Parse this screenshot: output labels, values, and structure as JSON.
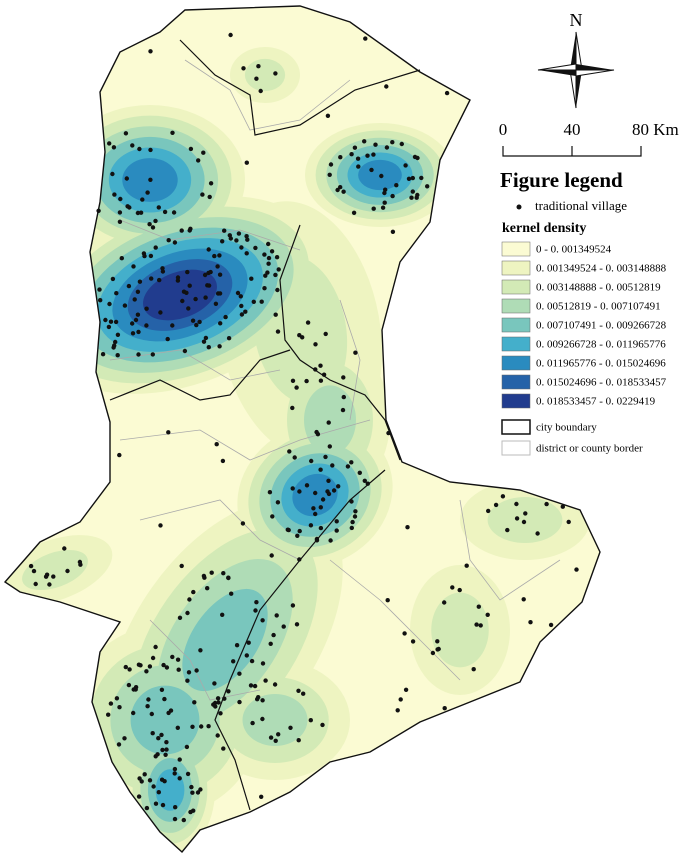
{
  "north": "N",
  "scale_bar": {
    "labels": [
      "0",
      "40",
      "80 Km"
    ]
  },
  "legend": {
    "title": "Figure legend",
    "village": "traditional village",
    "density_title": "kernel density",
    "classes": [
      {
        "label": "0 - 0. 001349524",
        "color": "#fbfbd3"
      },
      {
        "label": "0. 001349524 - 0. 003148888",
        "color": "#eef4c1"
      },
      {
        "label": "0. 003148888 - 0. 00512819",
        "color": "#d3eab6"
      },
      {
        "label": "0. 00512819 - 0. 007107491",
        "color": "#afdcb6"
      },
      {
        "label": "0. 007107491 - 0. 009266728",
        "color": "#79c6bd"
      },
      {
        "label": "0. 009266728 - 0. 011965776",
        "color": "#44afcb"
      },
      {
        "label": "0. 011965776 - 0. 015024696",
        "color": "#2a8bbf"
      },
      {
        "label": "0. 015024696 - 0. 018533457",
        "color": "#2562a8"
      },
      {
        "label": "0. 018533457 - 0. 0229419",
        "color": "#213c8e"
      }
    ],
    "city_boundary": "city boundary",
    "district_border": "district or county border"
  }
}
